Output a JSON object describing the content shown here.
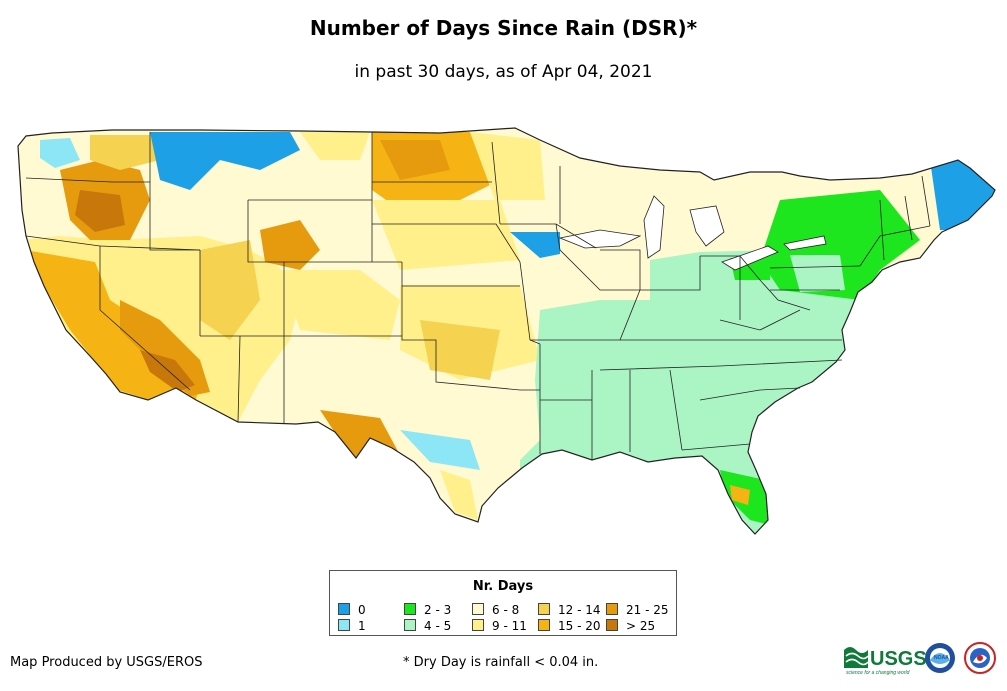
{
  "title": "Number of Days Since Rain (DSR)*",
  "subtitle": "in past 30 days, as of Apr 04, 2021",
  "legend": {
    "title": "Nr. Days",
    "items": [
      {
        "label": "0",
        "color": "#1ea0e6"
      },
      {
        "label": "1",
        "color": "#8ce6f5"
      },
      {
        "label": "2 - 3",
        "color": "#1ee61e"
      },
      {
        "label": "4 - 5",
        "color": "#aaf5c3"
      },
      {
        "label": "6 - 8",
        "color": "#fffad2"
      },
      {
        "label": "9 - 11",
        "color": "#fff08c"
      },
      {
        "label": "12 - 14",
        "color": "#f5d250"
      },
      {
        "label": "15 - 20",
        "color": "#f5b414"
      },
      {
        "label": "21 - 25",
        "color": "#e69b0f"
      },
      {
        "label": "> 25",
        "color": "#c8780a"
      }
    ]
  },
  "credit": "Map Produced by USGS/EROS",
  "footnote": "* Dry Day is rainfall < 0.04 in.",
  "logos": {
    "usgs": "USGS",
    "usgs_tagline": "science for a changing world",
    "noaa": "NOAA"
  },
  "colors": {
    "border": "#222222",
    "background": "#ffffff"
  }
}
